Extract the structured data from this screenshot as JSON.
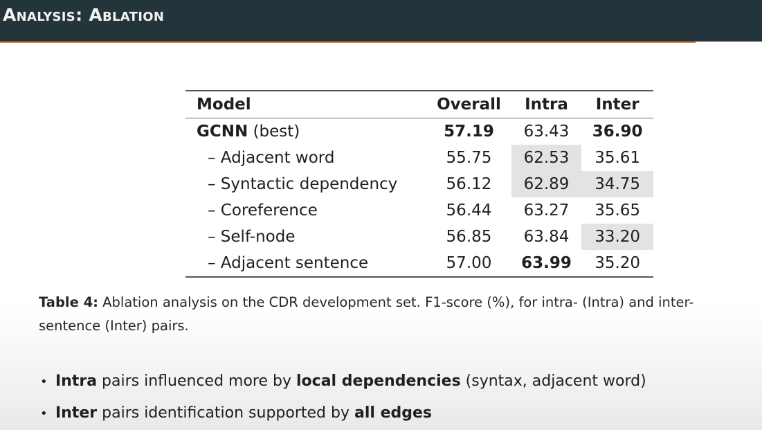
{
  "header": {
    "title": "Analysis: Ablation"
  },
  "table": {
    "columns": [
      "Model",
      "Overall",
      "Intra",
      "Inter"
    ],
    "rows": [
      {
        "name_bold": "GCNN",
        "name": " (best)",
        "overall": "57.19",
        "intra": "63.43",
        "inter": "36.90"
      },
      {
        "name": "– Adjacent word",
        "overall": "55.75",
        "intra": "62.53",
        "inter": "35.61"
      },
      {
        "name": "– Syntactic dependency",
        "overall": "56.12",
        "intra": "62.89",
        "inter": "34.75"
      },
      {
        "name": "– Coreference",
        "overall": "56.44",
        "intra": "63.27",
        "inter": "35.65"
      },
      {
        "name": "– Self-node",
        "overall": "56.85",
        "intra": "63.84",
        "inter": "33.20"
      },
      {
        "name": "– Adjacent sentence",
        "overall": "57.00",
        "intra": "63.99",
        "inter": "35.20"
      }
    ]
  },
  "caption": {
    "label": "Table 4:",
    "text": " Ablation analysis on the CDR development set. F1-score (%), for intra- (Intra) and inter-sentence (Inter) pairs."
  },
  "bullets": [
    {
      "parts": [
        "Intra",
        " pairs influenced more by ",
        "local dependencies",
        " (syntax, adjacent word)"
      ]
    },
    {
      "parts": [
        "Inter",
        " pairs identification supported by ",
        "all edges"
      ]
    }
  ],
  "colors": {
    "header_bg": "#23353a",
    "header_accent": "#e0873a",
    "highlight_cell": "#e3e3e3"
  }
}
